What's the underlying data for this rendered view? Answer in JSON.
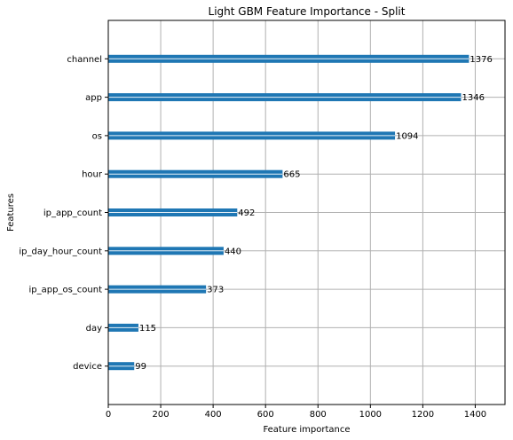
{
  "chart_data": {
    "type": "bar",
    "orientation": "horizontal",
    "title": "Light GBM Feature Importance - Split",
    "xlabel": "Feature importance",
    "ylabel": "Features",
    "categories": [
      "device",
      "day",
      "ip_app_os_count",
      "ip_day_hour_count",
      "ip_app_count",
      "hour",
      "os",
      "app",
      "channel"
    ],
    "values": [
      99,
      115,
      373,
      440,
      492,
      665,
      1094,
      1346,
      1376
    ],
    "data_labels": [
      "99",
      "115",
      "373",
      "440",
      "492",
      "665",
      "1094",
      "1346",
      "1376"
    ],
    "xlim": [
      0,
      1513.6
    ],
    "xticks": [
      0,
      200,
      400,
      600,
      800,
      1000,
      1200,
      1400
    ],
    "xtick_labels": [
      "0",
      "200",
      "400",
      "600",
      "800",
      "1000",
      "1200",
      "1400"
    ],
    "grid": true,
    "legend": "none",
    "colors": {
      "bar": "#1f77b4",
      "grid": "#b0b0b0",
      "axis": "#000000",
      "background": "#ffffff"
    }
  }
}
